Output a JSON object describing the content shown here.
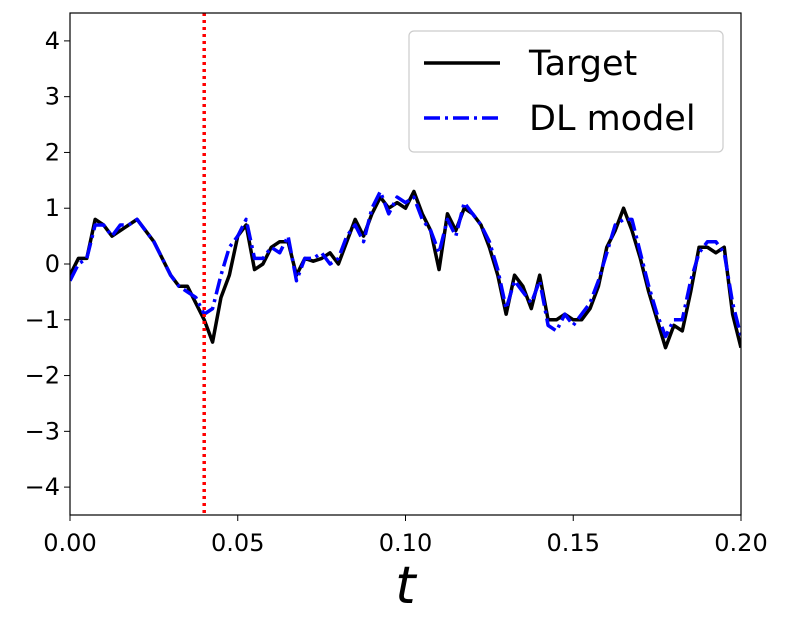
{
  "chart_data": {
    "type": "line",
    "xlabel": "t",
    "x": [
      0,
      0.0025,
      0.005,
      0.0075,
      0.01,
      0.0125,
      0.015,
      0.0175,
      0.02,
      0.0225,
      0.025,
      0.0275,
      0.03,
      0.0325,
      0.035,
      0.0375,
      0.04,
      0.0425,
      0.045,
      0.0475,
      0.05,
      0.0525,
      0.055,
      0.0575,
      0.06,
      0.0625,
      0.065,
      0.0675,
      0.07,
      0.0725,
      0.075,
      0.0775,
      0.08,
      0.0825,
      0.085,
      0.0875,
      0.09,
      0.0925,
      0.095,
      0.0975,
      0.1,
      0.1025,
      0.105,
      0.1075,
      0.11,
      0.1125,
      0.115,
      0.1175,
      0.12,
      0.1225,
      0.125,
      0.1275,
      0.13,
      0.1325,
      0.135,
      0.1375,
      0.14,
      0.1425,
      0.145,
      0.1475,
      0.15,
      0.1525,
      0.155,
      0.1575,
      0.16,
      0.1625,
      0.165,
      0.1675,
      0.17,
      0.1725,
      0.175,
      0.1775,
      0.18,
      0.1825,
      0.185,
      0.1875,
      0.19,
      0.1925,
      0.195,
      0.1975,
      0.2
    ],
    "series": [
      {
        "name": "Target",
        "color": "#000000",
        "dash": "solid",
        "values": [
          -0.2,
          0.1,
          0.1,
          0.8,
          0.7,
          0.5,
          0.6,
          0.7,
          0.8,
          0.6,
          0.4,
          0.1,
          -0.2,
          -0.4,
          -0.4,
          -0.7,
          -1.0,
          -1.4,
          -0.6,
          -0.2,
          0.5,
          0.7,
          -0.1,
          0.0,
          0.3,
          0.4,
          0.4,
          -0.2,
          0.1,
          0.05,
          0.1,
          0.2,
          0.0,
          0.4,
          0.8,
          0.5,
          0.9,
          1.2,
          1.0,
          1.1,
          1.0,
          1.3,
          0.9,
          0.6,
          -0.1,
          0.9,
          0.6,
          1.0,
          0.9,
          0.7,
          0.3,
          -0.2,
          -0.9,
          -0.2,
          -0.4,
          -0.8,
          -0.2,
          -1.0,
          -1.0,
          -0.9,
          -1.0,
          -1.0,
          -0.8,
          -0.4,
          0.3,
          0.6,
          1.0,
          0.6,
          0.1,
          -0.5,
          -1.0,
          -1.5,
          -1.1,
          -1.2,
          -0.5,
          0.3,
          0.3,
          0.2,
          0.3,
          -0.9,
          -1.5
        ]
      },
      {
        "name": "DL model",
        "color": "#0000ff",
        "dash": "dashdot",
        "values": [
          -0.3,
          0.0,
          0.1,
          0.7,
          0.7,
          0.5,
          0.7,
          0.7,
          0.8,
          0.6,
          0.4,
          0.1,
          -0.2,
          -0.4,
          -0.5,
          -0.6,
          -0.9,
          -0.8,
          -0.2,
          0.3,
          0.5,
          0.8,
          0.1,
          0.1,
          0.3,
          0.2,
          0.5,
          -0.3,
          0.1,
          0.1,
          0.2,
          0.0,
          0.1,
          0.5,
          0.7,
          0.4,
          1.0,
          1.3,
          0.9,
          1.2,
          1.1,
          1.2,
          0.8,
          0.6,
          0.2,
          0.8,
          0.5,
          1.1,
          0.9,
          0.7,
          0.4,
          -0.1,
          -0.8,
          -0.3,
          -0.5,
          -0.7,
          -0.3,
          -1.1,
          -1.2,
          -0.9,
          -1.1,
          -0.9,
          -0.7,
          -0.3,
          0.2,
          0.7,
          0.8,
          0.8,
          0.2,
          -0.4,
          -0.9,
          -1.3,
          -1.0,
          -1.0,
          -0.3,
          0.2,
          0.4,
          0.4,
          0.2,
          -0.7,
          -1.3
        ]
      }
    ],
    "vline": 0.04,
    "vline_color": "#ff0000",
    "xlim": [
      0,
      0.2
    ],
    "xticks": [
      {
        "value": 0,
        "label": "0.00"
      },
      {
        "value": 0.05,
        "label": "0.05"
      },
      {
        "value": 0.1,
        "label": "0.10"
      },
      {
        "value": 0.15,
        "label": "0.15"
      },
      {
        "value": 0.2,
        "label": "0.20"
      }
    ],
    "ylim": [
      -4.5,
      4.5
    ],
    "yticks": [
      {
        "value": -4,
        "label": "−4"
      },
      {
        "value": -3,
        "label": "−3"
      },
      {
        "value": -2,
        "label": "−2"
      },
      {
        "value": -1,
        "label": "−1"
      },
      0,
      1,
      2,
      3,
      4
    ],
    "legend": "upper right",
    "grid": false
  }
}
